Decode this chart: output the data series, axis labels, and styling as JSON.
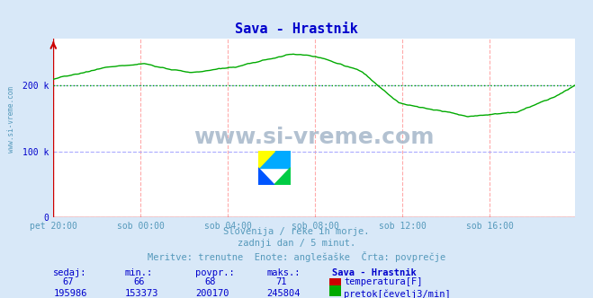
{
  "title": "Sava - Hrastnik",
  "title_color": "#0000cc",
  "bg_color": "#d8e8f8",
  "plot_bg_color": "#ffffff",
  "grid_color_v": "#ffaaaa",
  "grid_color_h": "#aaaaff",
  "xlabel_color": "#5599bb",
  "ylabel_color": "#0000cc",
  "x_tick_labels": [
    "pet 20:00",
    "sob 00:00",
    "sob 04:00",
    "sob 08:00",
    "sob 12:00",
    "sob 16:00"
  ],
  "x_tick_positions": [
    0,
    48,
    96,
    144,
    192,
    240
  ],
  "y_ticks": [
    0,
    100000,
    200000
  ],
  "y_tick_labels": [
    "0",
    "100 k",
    "200 k"
  ],
  "avg_line_value": 200170,
  "avg_line_color": "#00aa00",
  "flow_line_color": "#00aa00",
  "temp_color": "#cc0000",
  "watermark_text": "www.si-vreme.com",
  "watermark_color": "#aabbcc",
  "sub_text1": "Slovenija / reke in morje.",
  "sub_text2": "zadnji dan / 5 minut.",
  "sub_text3": "Meritve: trenutne  Enote: anglešaške  Črta: povprečje",
  "sub_text_color": "#5599bb",
  "legend_title": "Sava - Hrastnik",
  "sedaj_label": "sedaj:",
  "min_label": "min.:",
  "povpr_label": "povpr.:",
  "maks_label": "maks.:",
  "temp_sedaj": 67,
  "temp_min": 66,
  "temp_povpr": 68,
  "temp_maks": 71,
  "flow_sedaj": 195986,
  "flow_min": 153373,
  "flow_povpr": 200170,
  "flow_maks": 245804,
  "ylim": [
    0,
    270000
  ],
  "n_points": 288,
  "arrow_color": "#cc0000",
  "label_color": "#0000cc",
  "left_text": "www.si-vreme.com",
  "keypoints_t": [
    0,
    30,
    50,
    75,
    100,
    130,
    150,
    170,
    190,
    210,
    228,
    255,
    275,
    287
  ],
  "keypoints_v": [
    210000,
    228000,
    232000,
    218000,
    225000,
    245000,
    240000,
    220000,
    175000,
    163000,
    153000,
    160000,
    182000,
    200000
  ]
}
